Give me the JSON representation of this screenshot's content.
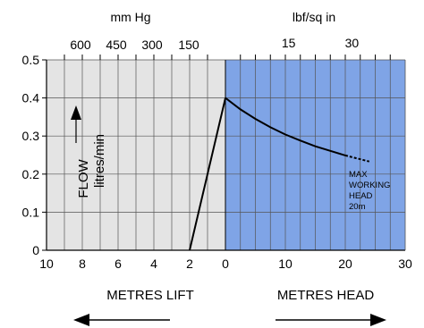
{
  "chart_data": {
    "type": "line",
    "x_axis_bottom": {
      "lift_ticks": [
        "10",
        "8",
        "6",
        "4",
        "2",
        "0"
      ],
      "lift_values": [
        10,
        8,
        6,
        4,
        2,
        0
      ],
      "head_ticks": [
        "10",
        "20",
        "30"
      ],
      "head_values": [
        10,
        20,
        30
      ],
      "lift_range": [
        10,
        0
      ],
      "head_range": [
        0,
        30
      ]
    },
    "y_axis": {
      "ticks": [
        "0",
        "0.1",
        "0.2",
        "0.3",
        "0.4",
        "0.5"
      ],
      "values": [
        0,
        0.1,
        0.2,
        0.3,
        0.4,
        0.5
      ],
      "range": [
        0,
        0.5
      ]
    },
    "top_axis_left": {
      "title": "mm Hg",
      "ticks": [
        "600",
        "450",
        "300",
        "150"
      ],
      "positions_metres_lift": [
        8.1,
        6.1,
        4.1,
        2.05
      ]
    },
    "top_axis_right": {
      "title": "lbf/sq in",
      "ticks": [
        "15",
        "30"
      ],
      "positions_metres_head": [
        10.55,
        21.1
      ]
    },
    "series": [
      {
        "segment": "lift",
        "points": [
          {
            "x_metres_lift": 2,
            "y": 0
          },
          {
            "x_metres_lift": 0,
            "y": 0.4
          }
        ]
      },
      {
        "segment": "head",
        "points": [
          {
            "x_metres_head": 0,
            "y": 0.4
          },
          {
            "x_metres_head": 2.5,
            "y": 0.37
          },
          {
            "x_metres_head": 5,
            "y": 0.345
          },
          {
            "x_metres_head": 7.5,
            "y": 0.323
          },
          {
            "x_metres_head": 10,
            "y": 0.304
          },
          {
            "x_metres_head": 12.5,
            "y": 0.288
          },
          {
            "x_metres_head": 15,
            "y": 0.273
          },
          {
            "x_metres_head": 17.5,
            "y": 0.261
          },
          {
            "x_metres_head": 20,
            "y": 0.249
          }
        ]
      },
      {
        "segment": "head-dashed",
        "dashed": true,
        "points": [
          {
            "x_metres_head": 20,
            "y": 0.249
          },
          {
            "x_metres_head": 22,
            "y": 0.241
          },
          {
            "x_metres_head": 24,
            "y": 0.233
          }
        ]
      }
    ],
    "y_label_line1": "FLOW",
    "y_label_line2": "litres/min",
    "annotation_lines": [
      "MAX",
      "WORKING",
      "HEAD",
      "20m"
    ],
    "bottom_left_label": "METRES LIFT",
    "bottom_right_label": "METRES HEAD",
    "grid": true,
    "colors": {
      "lift_region": "#e4e4e4",
      "head_region": "#7fa4e6",
      "grid_lines": "#555555",
      "line": "#000000"
    }
  }
}
